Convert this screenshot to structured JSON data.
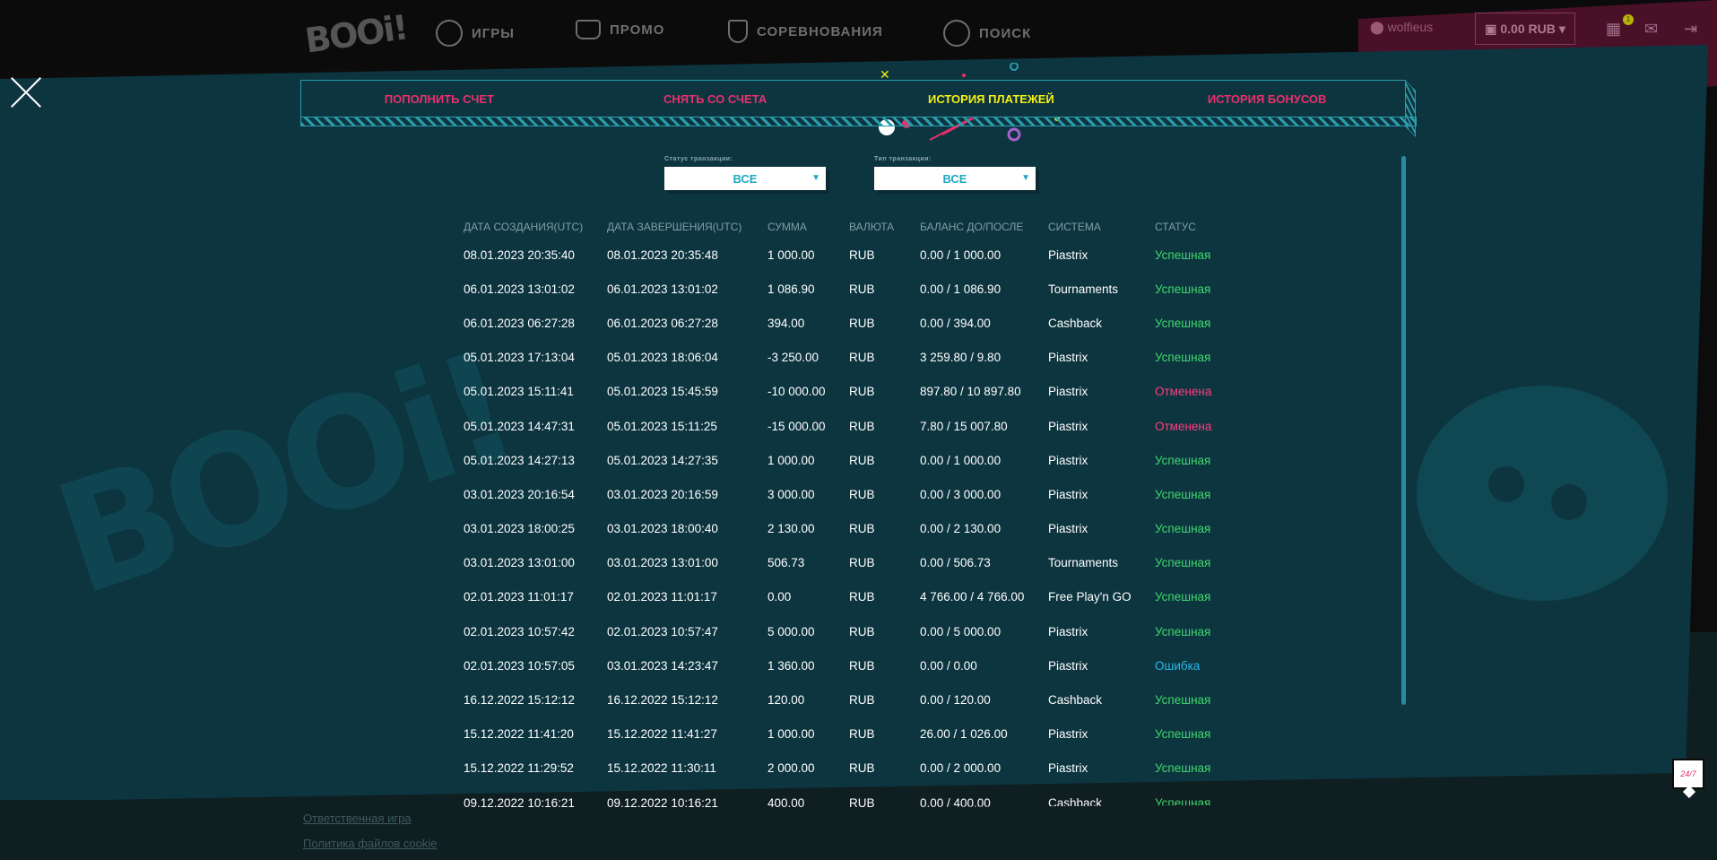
{
  "header": {
    "logo": "BOOi!",
    "nav": [
      {
        "label": "ИГРЫ",
        "icon": "chip-icon"
      },
      {
        "label": "ПРОМО",
        "icon": "crown-icon"
      },
      {
        "label": "СОРЕВНОВАНИЯ",
        "icon": "trophy-icon"
      },
      {
        "label": "ПОИСК",
        "icon": "search-icon"
      }
    ],
    "username": "wolfieus",
    "balance": "0.00 RUB",
    "gift_badge": "1"
  },
  "modal": {
    "tabs": [
      {
        "label": "ПОПОЛНИТЬ СЧЕТ",
        "active": false
      },
      {
        "label": "СНЯТЬ СО СЧЕТА",
        "active": false
      },
      {
        "label": "ИСТОРИЯ ПЛАТЕЖЕЙ",
        "active": true
      },
      {
        "label": "ИСТОРИЯ БОНУСОВ",
        "active": false
      }
    ],
    "filters": {
      "status_label": "Статус транзакции:",
      "status_value": "ВСЕ",
      "type_label": "Тип транзакции:",
      "type_value": "ВСЕ"
    },
    "columns": [
      "ДАТА СОЗДАНИЯ(UTC)",
      "ДАТА ЗАВЕРШЕНИЯ(UTC)",
      "СУММА",
      "ВАЛЮТА",
      "БАЛАНС ДО/ПОСЛЕ",
      "СИСТЕМА",
      "СТАТУС"
    ],
    "rows": [
      [
        "08.01.2023 20:35:40",
        "08.01.2023 20:35:48",
        "1 000.00",
        "RUB",
        "0.00 / 1 000.00",
        "Piastrix",
        "Успешная",
        "ok"
      ],
      [
        "06.01.2023 13:01:02",
        "06.01.2023 13:01:02",
        "1 086.90",
        "RUB",
        "0.00 / 1 086.90",
        "Tournaments",
        "Успешная",
        "ok"
      ],
      [
        "06.01.2023 06:27:28",
        "06.01.2023 06:27:28",
        "394.00",
        "RUB",
        "0.00 / 394.00",
        "Cashback",
        "Успешная",
        "ok"
      ],
      [
        "05.01.2023 17:13:04",
        "05.01.2023 18:06:04",
        "-3 250.00",
        "RUB",
        "3 259.80 / 9.80",
        "Piastrix",
        "Успешная",
        "ok"
      ],
      [
        "05.01.2023 15:11:41",
        "05.01.2023 15:45:59",
        "-10 000.00",
        "RUB",
        "897.80 / 10 897.80",
        "Piastrix",
        "Отменена",
        "cancel"
      ],
      [
        "05.01.2023 14:47:31",
        "05.01.2023 15:11:25",
        "-15 000.00",
        "RUB",
        "7.80 / 15 007.80",
        "Piastrix",
        "Отменена",
        "cancel"
      ],
      [
        "05.01.2023 14:27:13",
        "05.01.2023 14:27:35",
        "1 000.00",
        "RUB",
        "0.00 / 1 000.00",
        "Piastrix",
        "Успешная",
        "ok"
      ],
      [
        "03.01.2023 20:16:54",
        "03.01.2023 20:16:59",
        "3 000.00",
        "RUB",
        "0.00 / 3 000.00",
        "Piastrix",
        "Успешная",
        "ok"
      ],
      [
        "03.01.2023 18:00:25",
        "03.01.2023 18:00:40",
        "2 130.00",
        "RUB",
        "0.00 / 2 130.00",
        "Piastrix",
        "Успешная",
        "ok"
      ],
      [
        "03.01.2023 13:01:00",
        "03.01.2023 13:01:00",
        "506.73",
        "RUB",
        "0.00 / 506.73",
        "Tournaments",
        "Успешная",
        "ok"
      ],
      [
        "02.01.2023 11:01:17",
        "02.01.2023 11:01:17",
        "0.00",
        "RUB",
        "4 766.00 / 4 766.00",
        "Free Play'n GO",
        "Успешная",
        "ok"
      ],
      [
        "02.01.2023 10:57:42",
        "02.01.2023 10:57:47",
        "5 000.00",
        "RUB",
        "0.00 / 5 000.00",
        "Piastrix",
        "Успешная",
        "ok"
      ],
      [
        "02.01.2023 10:57:05",
        "03.01.2023 14:23:47",
        "1 360.00",
        "RUB",
        "0.00 / 0.00",
        "Piastrix",
        "Ошибка",
        "err"
      ],
      [
        "16.12.2022 15:12:12",
        "16.12.2022 15:12:12",
        "120.00",
        "RUB",
        "0.00 / 120.00",
        "Cashback",
        "Успешная",
        "ok"
      ],
      [
        "15.12.2022 11:41:20",
        "15.12.2022 11:41:27",
        "1 000.00",
        "RUB",
        "26.00 / 1 026.00",
        "Piastrix",
        "Успешная",
        "ok"
      ],
      [
        "15.12.2022 11:29:52",
        "15.12.2022 11:30:11",
        "2 000.00",
        "RUB",
        "0.00 / 2 000.00",
        "Piastrix",
        "Успешная",
        "ok"
      ],
      [
        "09.12.2022 10:16:21",
        "09.12.2022 10:16:21",
        "400.00",
        "RUB",
        "0.00 / 400.00",
        "Cashback",
        "Успешная",
        "ok"
      ]
    ]
  },
  "footer": {
    "links": [
      "Ответственная игра",
      "Политика файлов cookie"
    ]
  },
  "support": {
    "label": "24/7"
  },
  "colors": {
    "modal_bg": "#0d3540",
    "accent_pink": "#e9306c",
    "accent_yellow": "#f5ef14",
    "status_ok": "#3ed86a",
    "status_cancel": "#ff3d7d",
    "status_error": "#2ab8e8"
  }
}
